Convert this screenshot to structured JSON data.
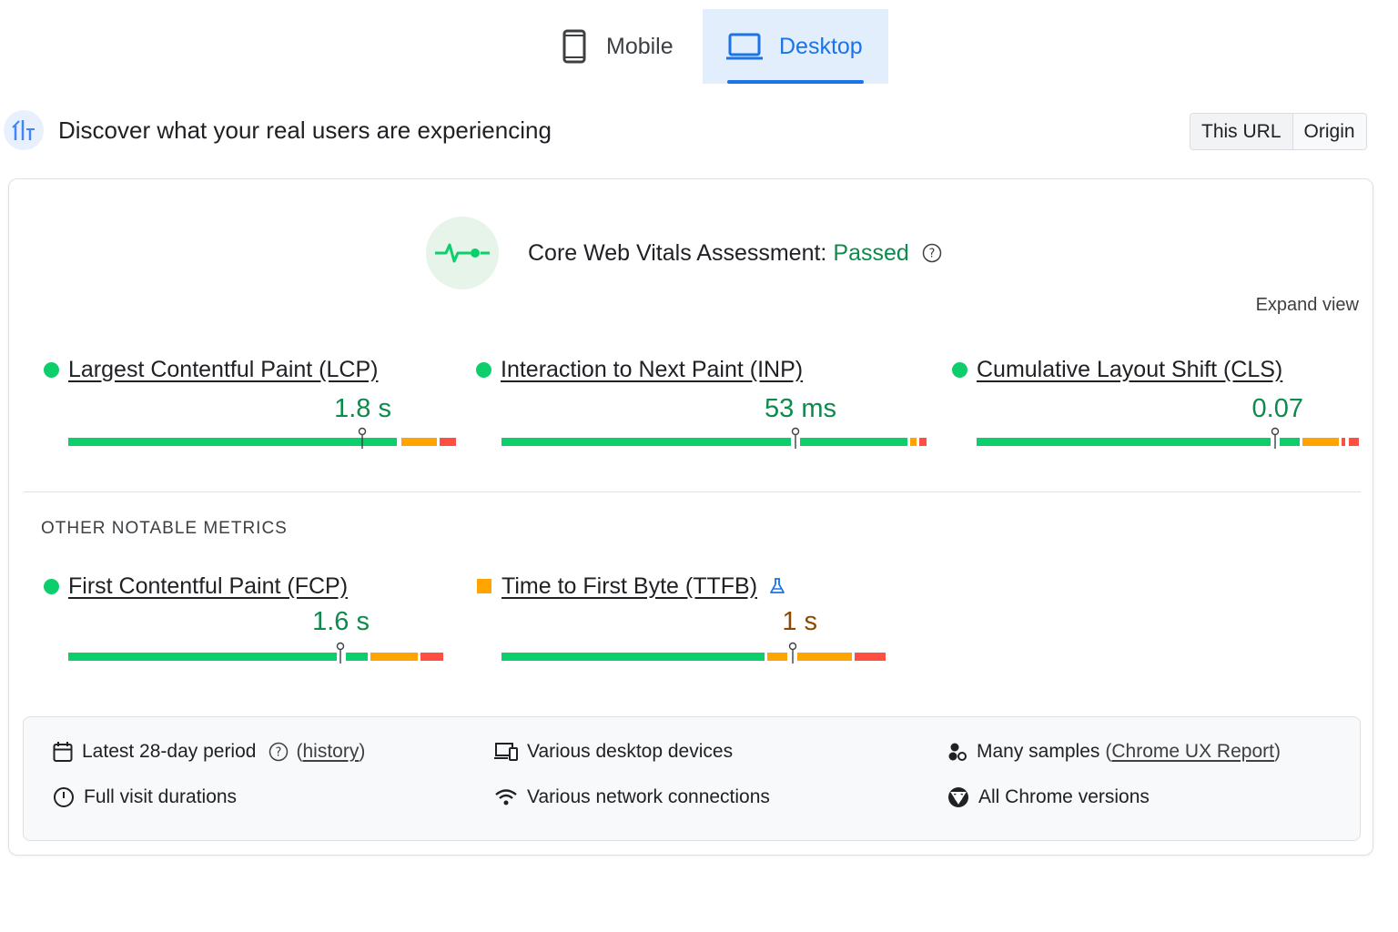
{
  "tabs": [
    {
      "label": "Mobile",
      "icon": "phone-icon",
      "active": false
    },
    {
      "label": "Desktop",
      "icon": "laptop-icon",
      "active": true
    }
  ],
  "header": {
    "title": "Discover what your real users are experiencing",
    "icon": "crux-chart-icon",
    "toggle": {
      "url_label": "This URL",
      "origin_label": "Origin",
      "selected": "This URL"
    }
  },
  "assessment": {
    "label": "Core Web Vitals Assessment:",
    "status": "Passed",
    "icon": "vitals-pulse-icon",
    "help_icon": "help-circle-icon",
    "status_color": "#0d8a4c"
  },
  "expand_label": "Expand view",
  "colors": {
    "good": "#0cce6b",
    "needs_improvement": "#ffa400",
    "poor": "#ff4e42",
    "good_text": "#0d8a4c",
    "ni_text": "#8c4a00"
  },
  "core_metrics": [
    {
      "name": "Largest Contentful Paint (LCP)",
      "value": "1.8 s",
      "rating": "good"
    },
    {
      "name": "Interaction to Next Paint (INP)",
      "value": "53 ms",
      "rating": "good"
    },
    {
      "name": "Cumulative Layout Shift (CLS)",
      "value": "0.07",
      "rating": "good"
    }
  ],
  "other_title": "OTHER NOTABLE METRICS",
  "other_metrics": [
    {
      "name": "First Contentful Paint (FCP)",
      "value": "1.6 s",
      "rating": "good"
    },
    {
      "name": "Time to First Byte (TTFB)",
      "value": "1 s",
      "rating": "needs-improvement",
      "experimental_icon": "flask-icon"
    }
  ],
  "info": {
    "period": {
      "label": "Latest 28-day period",
      "link": "history",
      "icon": "calendar-icon"
    },
    "durations": {
      "label": "Full visit durations",
      "icon": "timer-icon"
    },
    "devices": {
      "label": "Various desktop devices",
      "icon": "devices-icon"
    },
    "network": {
      "label": "Various network connections",
      "icon": "wifi-icon"
    },
    "samples": {
      "label": "Many samples",
      "link": "Chrome UX Report",
      "icon": "users-icon"
    },
    "chrome": {
      "label": "All Chrome versions",
      "icon": "chrome-icon"
    }
  }
}
